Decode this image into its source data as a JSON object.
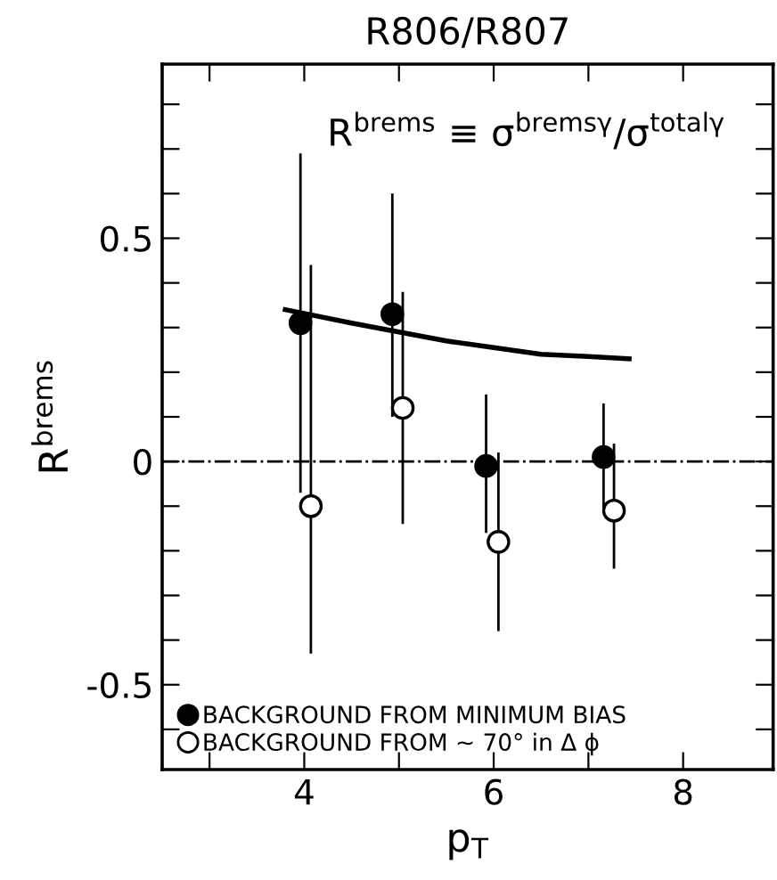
{
  "chart_data": {
    "type": "scatter",
    "title": "R806/R807",
    "xlabel": "p$_{T}$",
    "ylabel": "R$^{brems}$",
    "xlim": [
      2.5,
      8.95
    ],
    "ylim": [
      -0.69,
      0.89
    ],
    "xticks": [
      {
        "value": 3,
        "label": null
      },
      4,
      {
        "value": 5,
        "label": null
      },
      6,
      {
        "value": 7,
        "label": null
      },
      8
    ],
    "yticks": [
      {
        "value": -0.6,
        "label": null
      },
      {
        "value": -0.5,
        "label": "-0.5"
      },
      {
        "value": -0.4,
        "label": null
      },
      {
        "value": -0.3,
        "label": null
      },
      {
        "value": -0.2,
        "label": null
      },
      {
        "value": -0.1,
        "label": null
      },
      {
        "value": 0,
        "label": "0"
      },
      {
        "value": 0.1,
        "label": null
      },
      {
        "value": 0.2,
        "label": null
      },
      {
        "value": 0.3,
        "label": null
      },
      {
        "value": 0.4,
        "label": null
      },
      {
        "value": 0.5,
        "label": "0.5"
      },
      {
        "value": 0.6,
        "label": null
      },
      {
        "value": 0.7,
        "label": null
      },
      {
        "value": 0.8,
        "label": null
      }
    ],
    "grid": false,
    "legend": "bottom left",
    "marker": "circle",
    "ref_lines": [
      {
        "axis": "y",
        "value": 0,
        "color": "#000000",
        "line_style": "dashdot"
      }
    ],
    "annotations": [
      "R$^{brems}$ ≡ σ$^{bremsγ}$/σ$^{totalγ}$"
    ],
    "series": [
      {
        "name": "BACKGROUND FROM MINIMUM BIAS",
        "color": "#000000",
        "x": [
          3.96,
          4.93,
          5.92,
          7.16
        ],
        "values": [
          0.31,
          0.33,
          -0.01,
          0.01
        ],
        "errors": [
          [
            -0.07,
            0.69
          ],
          [
            0.1,
            0.6
          ],
          [
            -0.16,
            0.15
          ],
          [
            -0.11,
            0.13
          ]
        ]
      },
      {
        "name": "BACKGROUND FROM ~ 70° in Δ ϕ",
        "color": "#ffffff",
        "x": [
          4.07,
          5.04,
          6.05,
          7.27
        ],
        "values": [
          -0.1,
          0.12,
          -0.18,
          -0.11
        ],
        "errors": [
          [
            -0.43,
            0.44
          ],
          [
            -0.14,
            0.38
          ],
          [
            -0.38,
            0.02
          ],
          [
            -0.24,
            0.04
          ]
        ]
      },
      {
        "type": "line",
        "color": "#000000",
        "marker": "none",
        "x": [
          3.8,
          4.5,
          5.0,
          5.5,
          6.0,
          6.5,
          7.0,
          7.43
        ],
        "values": [
          0.34,
          0.31,
          0.29,
          0.27,
          0.255,
          0.24,
          0.235,
          0.23
        ]
      }
    ]
  }
}
